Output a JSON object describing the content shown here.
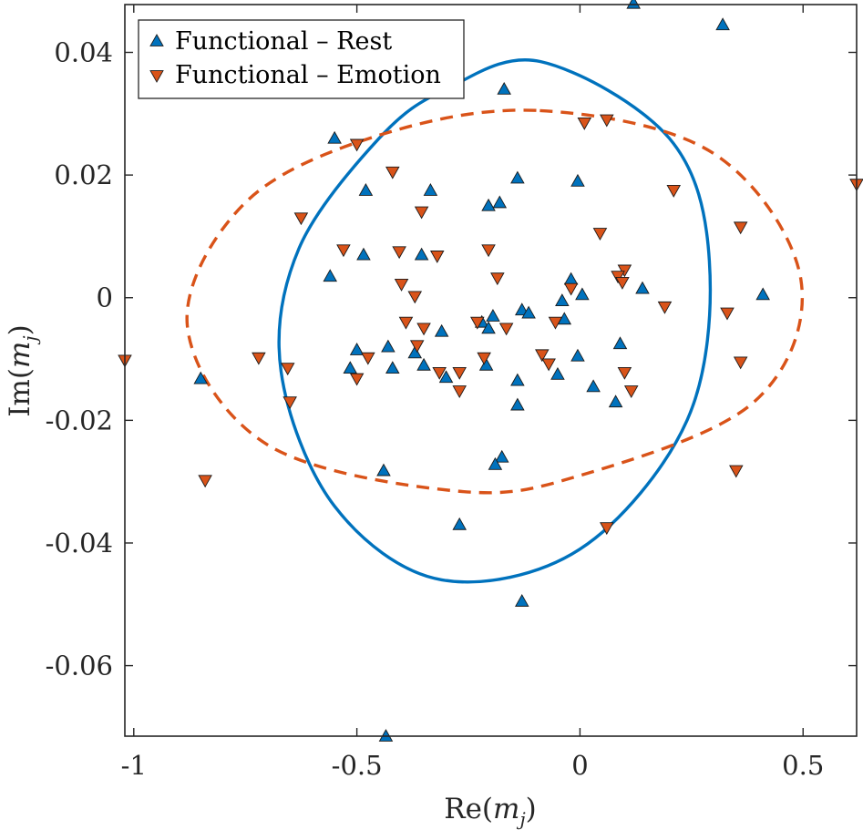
{
  "chart_data": {
    "type": "scatter",
    "title": "",
    "xlabel": "Re(m_j)",
    "ylabel": "Im(m_j)",
    "xlabel_parts": {
      "pre": "Re(",
      "var": "m",
      "sub": "j",
      "post": ")"
    },
    "ylabel_parts": {
      "pre": "Im(",
      "var": "m",
      "sub": "j",
      "post": ")"
    },
    "xlim": [
      -1.02,
      0.62
    ],
    "ylim": [
      -0.0715,
      0.0478
    ],
    "grid": false,
    "legend_position": "top-left",
    "x_ticks": [
      -1,
      -0.5,
      0,
      0.5
    ],
    "x_tick_labels": [
      "-1",
      "-0.5",
      "0",
      "0.5"
    ],
    "y_ticks": [
      0.04,
      0.02,
      0,
      -0.02,
      -0.04,
      -0.06
    ],
    "y_tick_labels": [
      "0.04",
      "0.02",
      "0",
      "-0.02",
      "-0.04",
      "-0.06"
    ],
    "series": [
      {
        "name": "Functional – Rest",
        "marker": "triangle-up",
        "color": "#0072BD",
        "points": [
          [
            0.12,
            0.048
          ],
          [
            0.32,
            0.0445
          ],
          [
            -0.17,
            0.034
          ],
          [
            -0.55,
            0.026
          ],
          [
            -0.14,
            0.0195
          ],
          [
            -0.335,
            0.0175
          ],
          [
            -0.48,
            0.0175
          ],
          [
            -0.005,
            0.019
          ],
          [
            -0.18,
            0.0155
          ],
          [
            -0.205,
            0.015
          ],
          [
            -0.56,
            0.0035
          ],
          [
            -0.485,
            0.007
          ],
          [
            -0.355,
            0.007
          ],
          [
            0.41,
            0.0005
          ],
          [
            0.14,
            0.0015
          ],
          [
            0.005,
            0.0005
          ],
          [
            -0.02,
            0.003
          ],
          [
            -0.04,
            -0.0005
          ],
          [
            -0.13,
            -0.002
          ],
          [
            -0.115,
            -0.0025
          ],
          [
            -0.195,
            -0.003
          ],
          [
            -0.22,
            -0.004
          ],
          [
            -0.205,
            -0.005
          ],
          [
            -0.035,
            -0.0035
          ],
          [
            -0.31,
            -0.0055
          ],
          [
            0.09,
            -0.0075
          ],
          [
            -0.5,
            -0.0085
          ],
          [
            -0.43,
            -0.008
          ],
          [
            -0.37,
            -0.009
          ],
          [
            -0.515,
            -0.0115
          ],
          [
            -0.42,
            -0.0115
          ],
          [
            -0.35,
            -0.011
          ],
          [
            -0.21,
            -0.011
          ],
          [
            -0.3,
            -0.013
          ],
          [
            -0.005,
            -0.0095
          ],
          [
            0.03,
            -0.0145
          ],
          [
            -0.05,
            -0.0125
          ],
          [
            -0.14,
            -0.0135
          ],
          [
            -0.14,
            -0.0175
          ],
          [
            0.08,
            -0.017
          ],
          [
            -0.85,
            -0.0132
          ],
          [
            -0.175,
            -0.026
          ],
          [
            -0.19,
            -0.0272
          ],
          [
            -0.44,
            -0.0282
          ],
          [
            -0.27,
            -0.037
          ],
          [
            -0.13,
            -0.0495
          ],
          [
            -0.435,
            -0.0715
          ]
        ]
      },
      {
        "name": "Functional – Emotion",
        "marker": "triangle-down",
        "color": "#D95319",
        "points": [
          [
            0.01,
            0.0285
          ],
          [
            0.06,
            0.029
          ],
          [
            -0.5,
            0.025
          ],
          [
            -0.42,
            0.0205
          ],
          [
            0.62,
            0.0185
          ],
          [
            0.21,
            0.0175
          ],
          [
            -0.355,
            0.014
          ],
          [
            -0.625,
            0.013
          ],
          [
            0.36,
            0.0115
          ],
          [
            0.045,
            0.0105
          ],
          [
            -0.53,
            0.0078
          ],
          [
            -0.205,
            0.0078
          ],
          [
            -0.405,
            0.0075
          ],
          [
            -0.32,
            0.0068
          ],
          [
            -0.185,
            0.0032
          ],
          [
            0.1,
            0.0045
          ],
          [
            0.085,
            0.0035
          ],
          [
            0.095,
            0.0025
          ],
          [
            -0.4,
            0.0022
          ],
          [
            -0.02,
            0.0015
          ],
          [
            -0.37,
            0.0002
          ],
          [
            0.19,
            -0.0015
          ],
          [
            0.33,
            -0.0025
          ],
          [
            -0.39,
            -0.004
          ],
          [
            -0.35,
            -0.005
          ],
          [
            -0.055,
            -0.004
          ],
          [
            -0.23,
            -0.004
          ],
          [
            -0.165,
            -0.005
          ],
          [
            -0.365,
            -0.0078
          ],
          [
            -0.72,
            -0.0098
          ],
          [
            -0.085,
            -0.0093
          ],
          [
            -0.475,
            -0.0098
          ],
          [
            -0.215,
            -0.0098
          ],
          [
            -0.07,
            -0.0108
          ],
          [
            0.36,
            -0.0105
          ],
          [
            -0.655,
            -0.0115
          ],
          [
            -0.315,
            -0.0122
          ],
          [
            -0.27,
            -0.0122
          ],
          [
            0.1,
            -0.0122
          ],
          [
            -0.5,
            -0.0132
          ],
          [
            0.115,
            -0.0152
          ],
          [
            -0.27,
            -0.0152
          ],
          [
            -0.65,
            -0.017
          ],
          [
            -1.02,
            -0.0102
          ],
          [
            -0.84,
            -0.0298
          ],
          [
            0.35,
            -0.0282
          ],
          [
            0.06,
            -0.0375
          ]
        ]
      }
    ],
    "ellipses": [
      {
        "series": "Functional – Rest",
        "style": "solid",
        "color": "#0072BD",
        "center": [
          -0.105,
          -0.0035
        ],
        "points": [
          [
            -0.088,
            0.0385
          ],
          [
            0.2,
            0.026
          ],
          [
            0.29,
            0.006
          ],
          [
            0.24,
            -0.02
          ],
          [
            0.0,
            -0.041
          ],
          [
            -0.31,
            -0.046
          ],
          [
            -0.55,
            -0.034
          ],
          [
            -0.67,
            -0.012
          ],
          [
            -0.63,
            0.008
          ],
          [
            -0.45,
            0.026
          ],
          [
            -0.3,
            0.034
          ]
        ]
      },
      {
        "series": "Functional – Emotion",
        "style": "dashed",
        "color": "#D95319",
        "center": [
          -0.187,
          -0.0005
        ],
        "points": [
          [
            -0.09,
            0.0305
          ],
          [
            0.3,
            0.0235
          ],
          [
            0.495,
            0.003
          ],
          [
            0.39,
            -0.017
          ],
          [
            0.0,
            -0.029
          ],
          [
            -0.28,
            -0.0315
          ],
          [
            -0.7,
            -0.024
          ],
          [
            -0.88,
            -0.0045
          ],
          [
            -0.75,
            0.0155
          ],
          [
            -0.45,
            0.0265
          ]
        ]
      }
    ]
  }
}
